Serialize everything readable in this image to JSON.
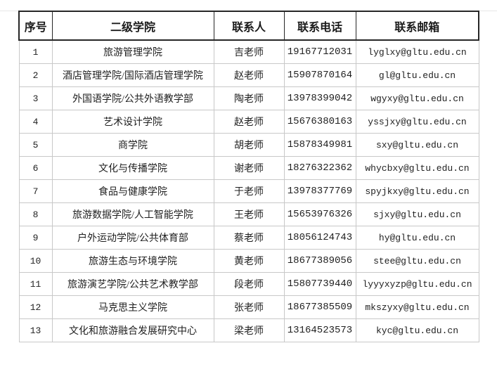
{
  "colors": {
    "header_border": "#262626",
    "grid_border": "#c8c8c8",
    "header_text": "#1a1a1a",
    "cell_text": "#1f1f1f",
    "top_rule": "#e7e7e7",
    "background": "#ffffff"
  },
  "table": {
    "columns": [
      {
        "key": "index",
        "label": "序号"
      },
      {
        "key": "college",
        "label": "二级学院"
      },
      {
        "key": "contact",
        "label": "联系人"
      },
      {
        "key": "phone",
        "label": "联系电话"
      },
      {
        "key": "email",
        "label": "联系邮箱"
      }
    ],
    "rows": [
      {
        "index": "1",
        "college": "旅游管理学院",
        "contact": "吉老师",
        "phone": "19167712031",
        "email": "lyglxy@gltu.edu.cn"
      },
      {
        "index": "2",
        "college": "酒店管理学院/国际酒店管理学院",
        "contact": "赵老师",
        "phone": "15907870164",
        "email": "gl@gltu.edu.cn"
      },
      {
        "index": "3",
        "college": "外国语学院/公共外语教学部",
        "contact": "陶老师",
        "phone": "13978399042",
        "email": "wgyxy@gltu.edu.cn"
      },
      {
        "index": "4",
        "college": "艺术设计学院",
        "contact": "赵老师",
        "phone": "15676380163",
        "email": "yssjxy@gltu.edu.cn"
      },
      {
        "index": "5",
        "college": "商学院",
        "contact": "胡老师",
        "phone": "15878349981",
        "email": "sxy@gltu.edu.cn"
      },
      {
        "index": "6",
        "college": "文化与传播学院",
        "contact": "谢老师",
        "phone": "18276322362",
        "email": "whycbxy@gltu.edu.cn"
      },
      {
        "index": "7",
        "college": "食品与健康学院",
        "contact": "于老师",
        "phone": "13978377769",
        "email": "spyjkxy@gltu.edu.cn"
      },
      {
        "index": "8",
        "college": "旅游数据学院/人工智能学院",
        "contact": "王老师",
        "phone": "15653976326",
        "email": "sjxy@gltu.edu.cn"
      },
      {
        "index": "9",
        "college": "户外运动学院/公共体育部",
        "contact": "蔡老师",
        "phone": "18056124743",
        "email": "hy@gltu.edu.cn"
      },
      {
        "index": "10",
        "college": "旅游生态与环境学院",
        "contact": "黄老师",
        "phone": "18677389056",
        "email": "stee@gltu.edu.cn"
      },
      {
        "index": "11",
        "college": "旅游演艺学院/公共艺术教学部",
        "contact": "段老师",
        "phone": "15807739440",
        "email": "lyyyxyzp@gltu.edu.cn"
      },
      {
        "index": "12",
        "college": "马克思主义学院",
        "contact": "张老师",
        "phone": "18677385509",
        "email": "mkszyxy@gltu.edu.cn"
      },
      {
        "index": "13",
        "college": "文化和旅游融合发展研究中心",
        "contact": "梁老师",
        "phone": "13164523573",
        "email": "kyc@gltu.edu.cn"
      }
    ]
  }
}
